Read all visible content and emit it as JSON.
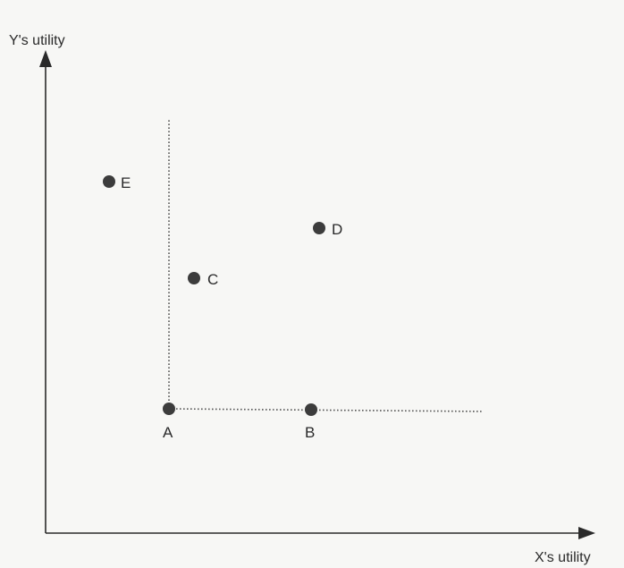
{
  "axes": {
    "y_title": "Y's utility",
    "x_title": "X's utility"
  },
  "points": [
    {
      "id": "A",
      "label": "A"
    },
    {
      "id": "B",
      "label": "B"
    },
    {
      "id": "C",
      "label": "C"
    },
    {
      "id": "D",
      "label": "D"
    },
    {
      "id": "E",
      "label": "E"
    }
  ]
}
